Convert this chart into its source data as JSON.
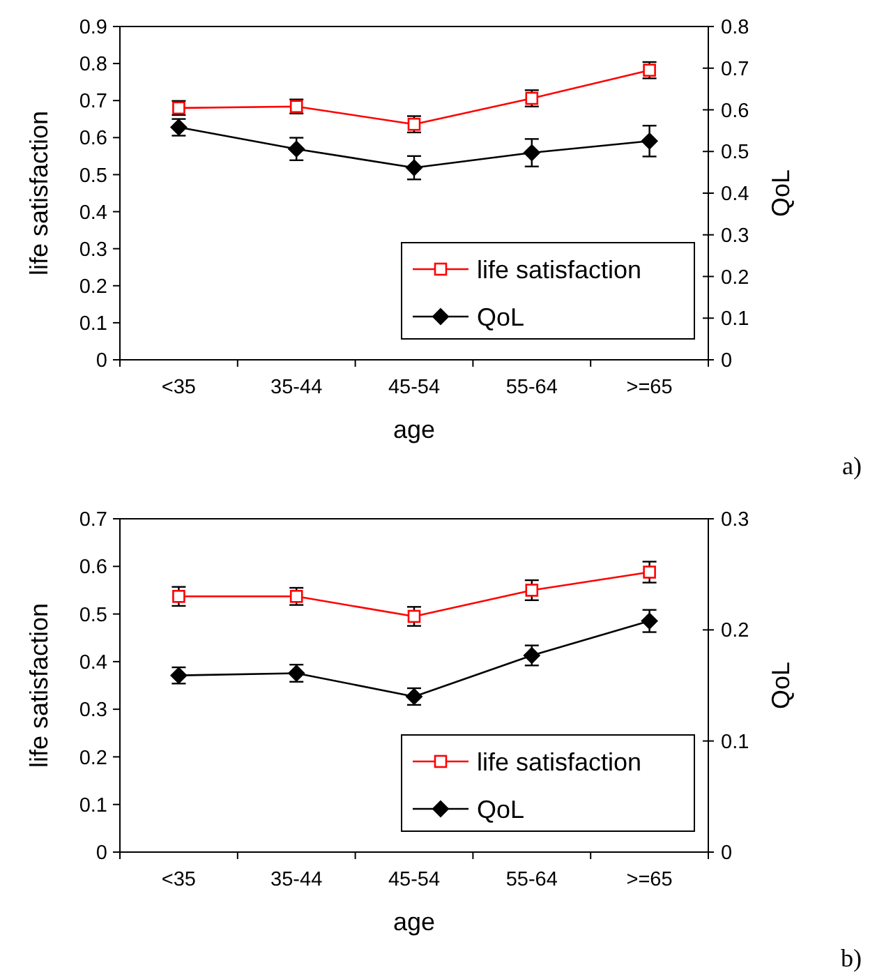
{
  "chart_data": [
    {
      "type": "line",
      "categories": [
        "<35",
        "35-44",
        "45-54",
        "55-64",
        ">=65"
      ],
      "xlabel": "age",
      "ylabel": "life satisfaction",
      "y2label": "QoL",
      "ylim": [
        0,
        0.9
      ],
      "yticks": [
        0,
        0.1,
        0.2,
        0.3,
        0.4,
        0.5,
        0.6,
        0.7,
        0.8,
        0.9
      ],
      "y2lim": [
        0,
        0.8
      ],
      "y2ticks": [
        0,
        0.1,
        0.2,
        0.3,
        0.4,
        0.5,
        0.6,
        0.7,
        0.8
      ],
      "legend": "bottom right",
      "grid": false,
      "annotations": [
        "a)"
      ],
      "series": [
        {
          "name": "life satisfaction",
          "color": "#ff0000",
          "marker": "square",
          "values": [
            0.68,
            0.684,
            0.636,
            0.706,
            0.782
          ],
          "errors": [
            0.019,
            0.019,
            0.022,
            0.022,
            0.022
          ]
        },
        {
          "name": "QoL",
          "color": "#000000",
          "marker": "diamond",
          "axis": "y2",
          "values": [
            0.558,
            0.506,
            0.461,
            0.497,
            0.525
          ],
          "errors": [
            0.02,
            0.027,
            0.028,
            0.033,
            0.037
          ]
        }
      ]
    },
    {
      "type": "line",
      "categories": [
        "<35",
        "35-44",
        "45-54",
        "55-64",
        ">=65"
      ],
      "xlabel": "age",
      "ylabel": "life satisfaction",
      "y2label": "QoL",
      "ylim": [
        0,
        0.7
      ],
      "yticks": [
        0,
        0.1,
        0.2,
        0.3,
        0.4,
        0.5,
        0.6,
        0.7
      ],
      "y2lim": [
        0,
        0.3
      ],
      "y2ticks": [
        0,
        0.1,
        0.2,
        0.3
      ],
      "legend": "bottom right",
      "grid": false,
      "annotations": [
        "b)"
      ],
      "series": [
        {
          "name": "life satisfaction",
          "color": "#ff0000",
          "marker": "square",
          "values": [
            0.537,
            0.537,
            0.495,
            0.55,
            0.588
          ],
          "errors": [
            0.02,
            0.018,
            0.02,
            0.021,
            0.022
          ]
        },
        {
          "name": "QoL",
          "color": "#000000",
          "marker": "diamond",
          "axis": "y2",
          "values": [
            0.159,
            0.161,
            0.14,
            0.177,
            0.208
          ],
          "errors": [
            0.0073,
            0.0077,
            0.0075,
            0.009,
            0.01
          ]
        }
      ]
    }
  ]
}
